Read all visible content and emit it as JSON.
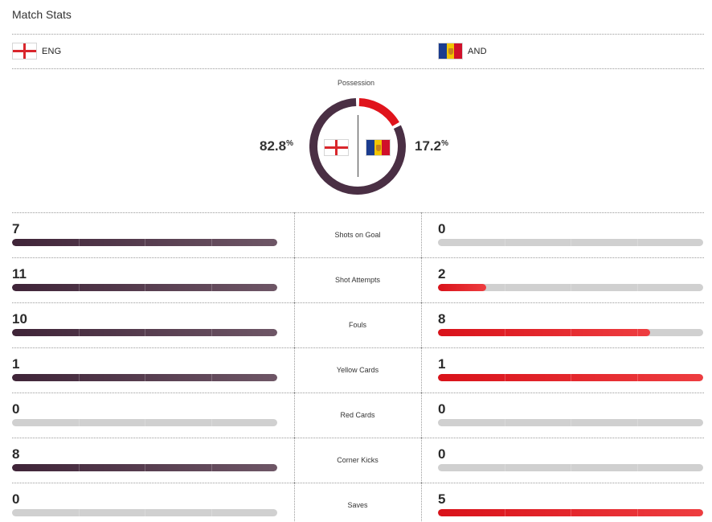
{
  "header": {
    "title": "Match Stats"
  },
  "teams": {
    "home": {
      "abbr": "ENG",
      "flag_icon": "england-flag-icon",
      "bar_color": "#4a2f44"
    },
    "away": {
      "abbr": "AND",
      "flag_icon": "andorra-flag-icon",
      "bar_color": "#e0141c"
    }
  },
  "possession": {
    "label": "Possession",
    "home_value": "82.8",
    "away_value": "17.2",
    "unit": "%",
    "home_fraction": 0.828,
    "away_fraction": 0.172,
    "home_color": "#4a2f44",
    "away_color": "#e0141c"
  },
  "stats": [
    {
      "label": "Shots on Goal",
      "home": "7",
      "away": "0",
      "home_fill": 1.0,
      "away_fill": 0.0
    },
    {
      "label": "Shot Attempts",
      "home": "11",
      "away": "2",
      "home_fill": 1.0,
      "away_fill": 0.182
    },
    {
      "label": "Fouls",
      "home": "10",
      "away": "8",
      "home_fill": 1.0,
      "away_fill": 0.8
    },
    {
      "label": "Yellow Cards",
      "home": "1",
      "away": "1",
      "home_fill": 1.0,
      "away_fill": 1.0
    },
    {
      "label": "Red Cards",
      "home": "0",
      "away": "0",
      "home_fill": 0.0,
      "away_fill": 0.0
    },
    {
      "label": "Corner Kicks",
      "home": "8",
      "away": "0",
      "home_fill": 1.0,
      "away_fill": 0.0
    },
    {
      "label": "Saves",
      "home": "0",
      "away": "5",
      "home_fill": 0.0,
      "away_fill": 1.0
    }
  ]
}
